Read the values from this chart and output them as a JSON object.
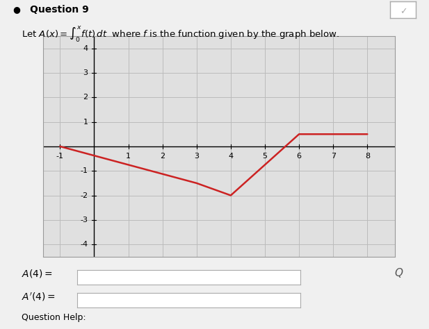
{
  "title": "Question 9",
  "graph_xlim": [
    -1.5,
    8.8
  ],
  "graph_ylim": [
    -4.5,
    4.5
  ],
  "xtick_vals": [
    -1,
    1,
    2,
    3,
    4,
    5,
    6,
    7,
    8
  ],
  "ytick_vals": [
    -4,
    -3,
    -2,
    -1,
    1,
    2,
    3,
    4
  ],
  "grid_color": "#bbbbbb",
  "line_color": "#cc2222",
  "line_width": 1.8,
  "f_points_x": [
    -1,
    3,
    4,
    6,
    8
  ],
  "f_points_y": [
    0,
    -1.5,
    -2,
    0.5,
    0.5
  ],
  "plot_bg_color": "#e0e0e0",
  "fig_bg_color": "#f0f0f0",
  "fig_width": 6.17,
  "fig_height": 4.74,
  "dpi": 100
}
